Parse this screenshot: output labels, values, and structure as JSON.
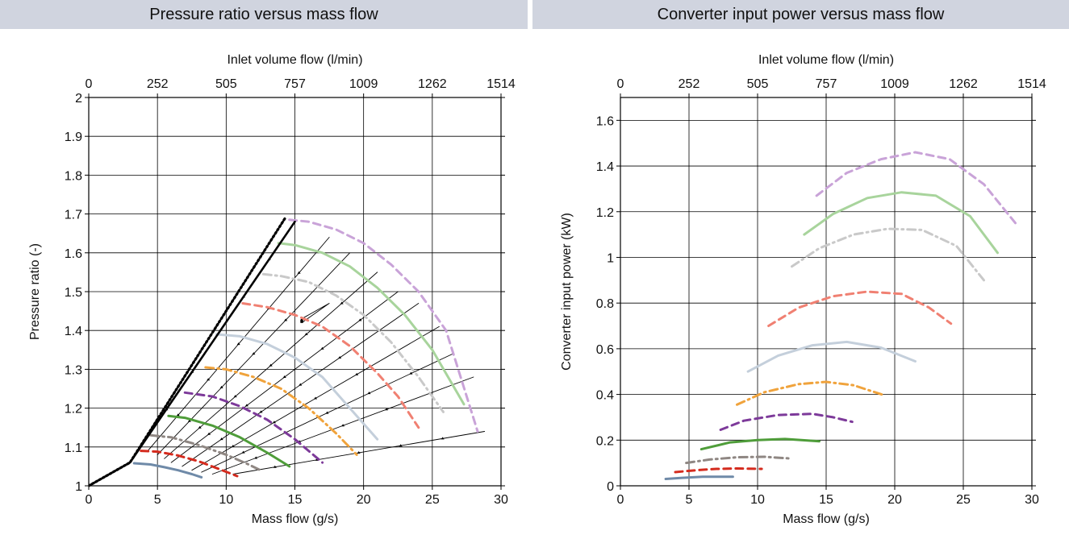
{
  "chart_data": [
    {
      "type": "line",
      "title": "Pressure ratio versus mass flow",
      "xlabel": "Mass flow (g/s)",
      "ylabel": "Pressure ratio (-)",
      "x2label": "Inlet volume flow (l/min)",
      "xlim": [
        0,
        30
      ],
      "ylim": [
        1,
        2
      ],
      "xticks": [
        "0",
        "5",
        "10",
        "15",
        "20",
        "25",
        "30"
      ],
      "yticks": [
        "1",
        "1.1",
        "1.2",
        "1.3",
        "1.4",
        "1.5",
        "1.6",
        "1.7",
        "1.8",
        "1.9",
        "2"
      ],
      "x2ticks": [
        "0",
        "252",
        "505",
        "757",
        "1009",
        "1262",
        "1514"
      ],
      "grid": true,
      "surge_lines": [
        {
          "style": "solid",
          "color": "#000000",
          "x": [
            0,
            3,
            15
          ],
          "y": [
            1.0,
            1.06,
            1.68
          ]
        },
        {
          "style": "dotted",
          "color": "#000000",
          "x": [
            0,
            3,
            14.3
          ],
          "y": [
            1.0,
            1.06,
            1.69
          ]
        }
      ],
      "speed_lines": [
        {
          "color": "#6f8aa8",
          "dash": "solid",
          "x": [
            3.3,
            4.5,
            5.5,
            6.5,
            7.5,
            8.2
          ],
          "y": [
            1.058,
            1.055,
            1.048,
            1.04,
            1.03,
            1.022
          ]
        },
        {
          "color": "#d42b1e",
          "dash": "dashed",
          "x": [
            3.8,
            5,
            6.5,
            8,
            9.5,
            10.8
          ],
          "y": [
            1.09,
            1.088,
            1.078,
            1.063,
            1.043,
            1.025
          ]
        },
        {
          "color": "#8f8783",
          "dash": "dashdot",
          "x": [
            4.5,
            6,
            8,
            10,
            11.5,
            12.5
          ],
          "y": [
            1.13,
            1.125,
            1.105,
            1.08,
            1.057,
            1.04
          ]
        },
        {
          "color": "#4f9d3a",
          "dash": "solid",
          "x": [
            5.8,
            7,
            9,
            11,
            13,
            14.6
          ],
          "y": [
            1.18,
            1.175,
            1.155,
            1.125,
            1.085,
            1.05
          ]
        },
        {
          "color": "#7d3a9a",
          "dash": "dashed",
          "x": [
            7,
            9,
            11,
            13,
            15,
            17
          ],
          "y": [
            1.24,
            1.23,
            1.205,
            1.17,
            1.12,
            1.06
          ]
        },
        {
          "color": "#f0a33c",
          "dash": "dashdot",
          "x": [
            8.5,
            10,
            12,
            14,
            16,
            18,
            19.5
          ],
          "y": [
            1.305,
            1.3,
            1.28,
            1.25,
            1.2,
            1.135,
            1.08
          ]
        },
        {
          "color": "#c4cfdb",
          "dash": "solid",
          "x": [
            9.3,
            11,
            13,
            15,
            17,
            19,
            21
          ],
          "y": [
            1.39,
            1.385,
            1.365,
            1.33,
            1.28,
            1.2,
            1.12
          ]
        },
        {
          "color": "#f08072",
          "dash": "dashed",
          "x": [
            11.2,
            13,
            15,
            17,
            19,
            21,
            22.5,
            24
          ],
          "y": [
            1.47,
            1.46,
            1.44,
            1.41,
            1.36,
            1.29,
            1.23,
            1.15
          ]
        },
        {
          "color": "#c9c9c9",
          "dash": "dashdot",
          "x": [
            12.7,
            14,
            16,
            18,
            20,
            22,
            24,
            25.8
          ],
          "y": [
            1.545,
            1.54,
            1.525,
            1.49,
            1.44,
            1.37,
            1.28,
            1.19
          ]
        },
        {
          "color": "#a8d49c",
          "dash": "solid",
          "x": [
            13.8,
            15,
            17,
            19,
            21,
            23,
            25,
            27.3
          ],
          "y": [
            1.625,
            1.62,
            1.6,
            1.565,
            1.51,
            1.44,
            1.35,
            1.21
          ]
        },
        {
          "color": "#c9a3d8",
          "dash": "dashed",
          "x": [
            14.6,
            16,
            18,
            20,
            22,
            24,
            26,
            28.3
          ],
          "y": [
            1.685,
            1.68,
            1.66,
            1.625,
            1.57,
            1.5,
            1.4,
            1.14
          ]
        }
      ],
      "efficiency_lines": [
        {
          "x": [
            3.8,
            15
          ],
          "y": [
            1.1,
            1.68
          ]
        },
        {
          "x": [
            4.3,
            17.5
          ],
          "y": [
            1.09,
            1.64
          ]
        },
        {
          "x": [
            5,
            19
          ],
          "y": [
            1.08,
            1.6
          ]
        },
        {
          "x": [
            5.5,
            21
          ],
          "y": [
            1.07,
            1.55
          ]
        },
        {
          "x": [
            6,
            22.5
          ],
          "y": [
            1.06,
            1.5
          ]
        },
        {
          "x": [
            6.8,
            24
          ],
          "y": [
            1.05,
            1.47
          ]
        },
        {
          "x": [
            7.5,
            25.5
          ],
          "y": [
            1.04,
            1.41
          ]
        },
        {
          "x": [
            8.2,
            26.5
          ],
          "y": [
            1.035,
            1.34
          ]
        },
        {
          "x": [
            9,
            28
          ],
          "y": [
            1.03,
            1.28
          ]
        },
        {
          "x": [
            10.5,
            28.8
          ],
          "y": [
            1.03,
            1.14
          ]
        },
        {
          "x": [
            15.5,
            17.5,
            15.5
          ],
          "y": [
            1.42,
            1.47,
            1.43
          ]
        }
      ]
    },
    {
      "type": "line",
      "title": "Converter input power versus mass flow",
      "xlabel": "Mass flow (g/s)",
      "ylabel": "Converter input power (kW)",
      "x2label": "Inlet volume flow (l/min)",
      "xlim": [
        0,
        30
      ],
      "ylim": [
        0,
        1.7
      ],
      "xticks": [
        "0",
        "5",
        "10",
        "15",
        "20",
        "25",
        "30"
      ],
      "yticks": [
        "0",
        "0.2",
        "0.4",
        "0.6",
        "0.8",
        "1",
        "1.2",
        "1.4",
        "1.6"
      ],
      "x2ticks": [
        "0",
        "252",
        "505",
        "757",
        "1009",
        "1262",
        "1514"
      ],
      "grid": true,
      "series": [
        {
          "color": "#6f8aa8",
          "dash": "solid",
          "x": [
            3.3,
            4.5,
            6,
            7.5,
            8.2
          ],
          "y": [
            0.03,
            0.035,
            0.04,
            0.04,
            0.04
          ]
        },
        {
          "color": "#d42b1e",
          "dash": "dashed",
          "x": [
            4,
            5.5,
            7,
            8.5,
            10.3
          ],
          "y": [
            0.06,
            0.068,
            0.074,
            0.076,
            0.074
          ]
        },
        {
          "color": "#8f8783",
          "dash": "dashdot",
          "x": [
            4.8,
            6.5,
            8.5,
            10.5,
            12.3
          ],
          "y": [
            0.1,
            0.115,
            0.125,
            0.127,
            0.12
          ]
        },
        {
          "color": "#4f9d3a",
          "dash": "solid",
          "x": [
            5.9,
            8,
            10,
            12,
            14.5
          ],
          "y": [
            0.16,
            0.19,
            0.2,
            0.205,
            0.195
          ]
        },
        {
          "color": "#7d3a9a",
          "dash": "dashed",
          "x": [
            7.3,
            9,
            11.5,
            14,
            15.5,
            16.9
          ],
          "y": [
            0.245,
            0.285,
            0.31,
            0.315,
            0.3,
            0.28
          ]
        },
        {
          "color": "#f0a33c",
          "dash": "dashdot",
          "x": [
            8.5,
            10.5,
            13,
            15,
            17,
            19.3
          ],
          "y": [
            0.355,
            0.41,
            0.445,
            0.455,
            0.44,
            0.395
          ]
        },
        {
          "color": "#c4cfdb",
          "dash": "solid",
          "x": [
            9.3,
            11.5,
            14,
            16.5,
            19,
            21.5
          ],
          "y": [
            0.5,
            0.57,
            0.615,
            0.63,
            0.605,
            0.545
          ]
        },
        {
          "color": "#f08072",
          "dash": "dashed",
          "x": [
            10.8,
            13,
            15.5,
            18,
            20.5,
            22.5,
            24.1
          ],
          "y": [
            0.7,
            0.78,
            0.83,
            0.85,
            0.84,
            0.78,
            0.71
          ]
        },
        {
          "color": "#c9c9c9",
          "dash": "dashdot",
          "x": [
            12.5,
            14.5,
            17,
            19.5,
            22,
            24.5,
            26.5
          ],
          "y": [
            0.96,
            1.04,
            1.1,
            1.125,
            1.12,
            1.05,
            0.9
          ]
        },
        {
          "color": "#a8d49c",
          "dash": "solid",
          "x": [
            13.4,
            15.5,
            18,
            20.5,
            23,
            25.5,
            27.5
          ],
          "y": [
            1.1,
            1.19,
            1.26,
            1.285,
            1.27,
            1.18,
            1.02
          ]
        },
        {
          "color": "#c9a3d8",
          "dash": "dashed",
          "x": [
            14.3,
            16.5,
            19,
            21.5,
            24,
            26.5,
            28.8
          ],
          "y": [
            1.27,
            1.37,
            1.43,
            1.46,
            1.43,
            1.32,
            1.15
          ]
        }
      ]
    }
  ]
}
